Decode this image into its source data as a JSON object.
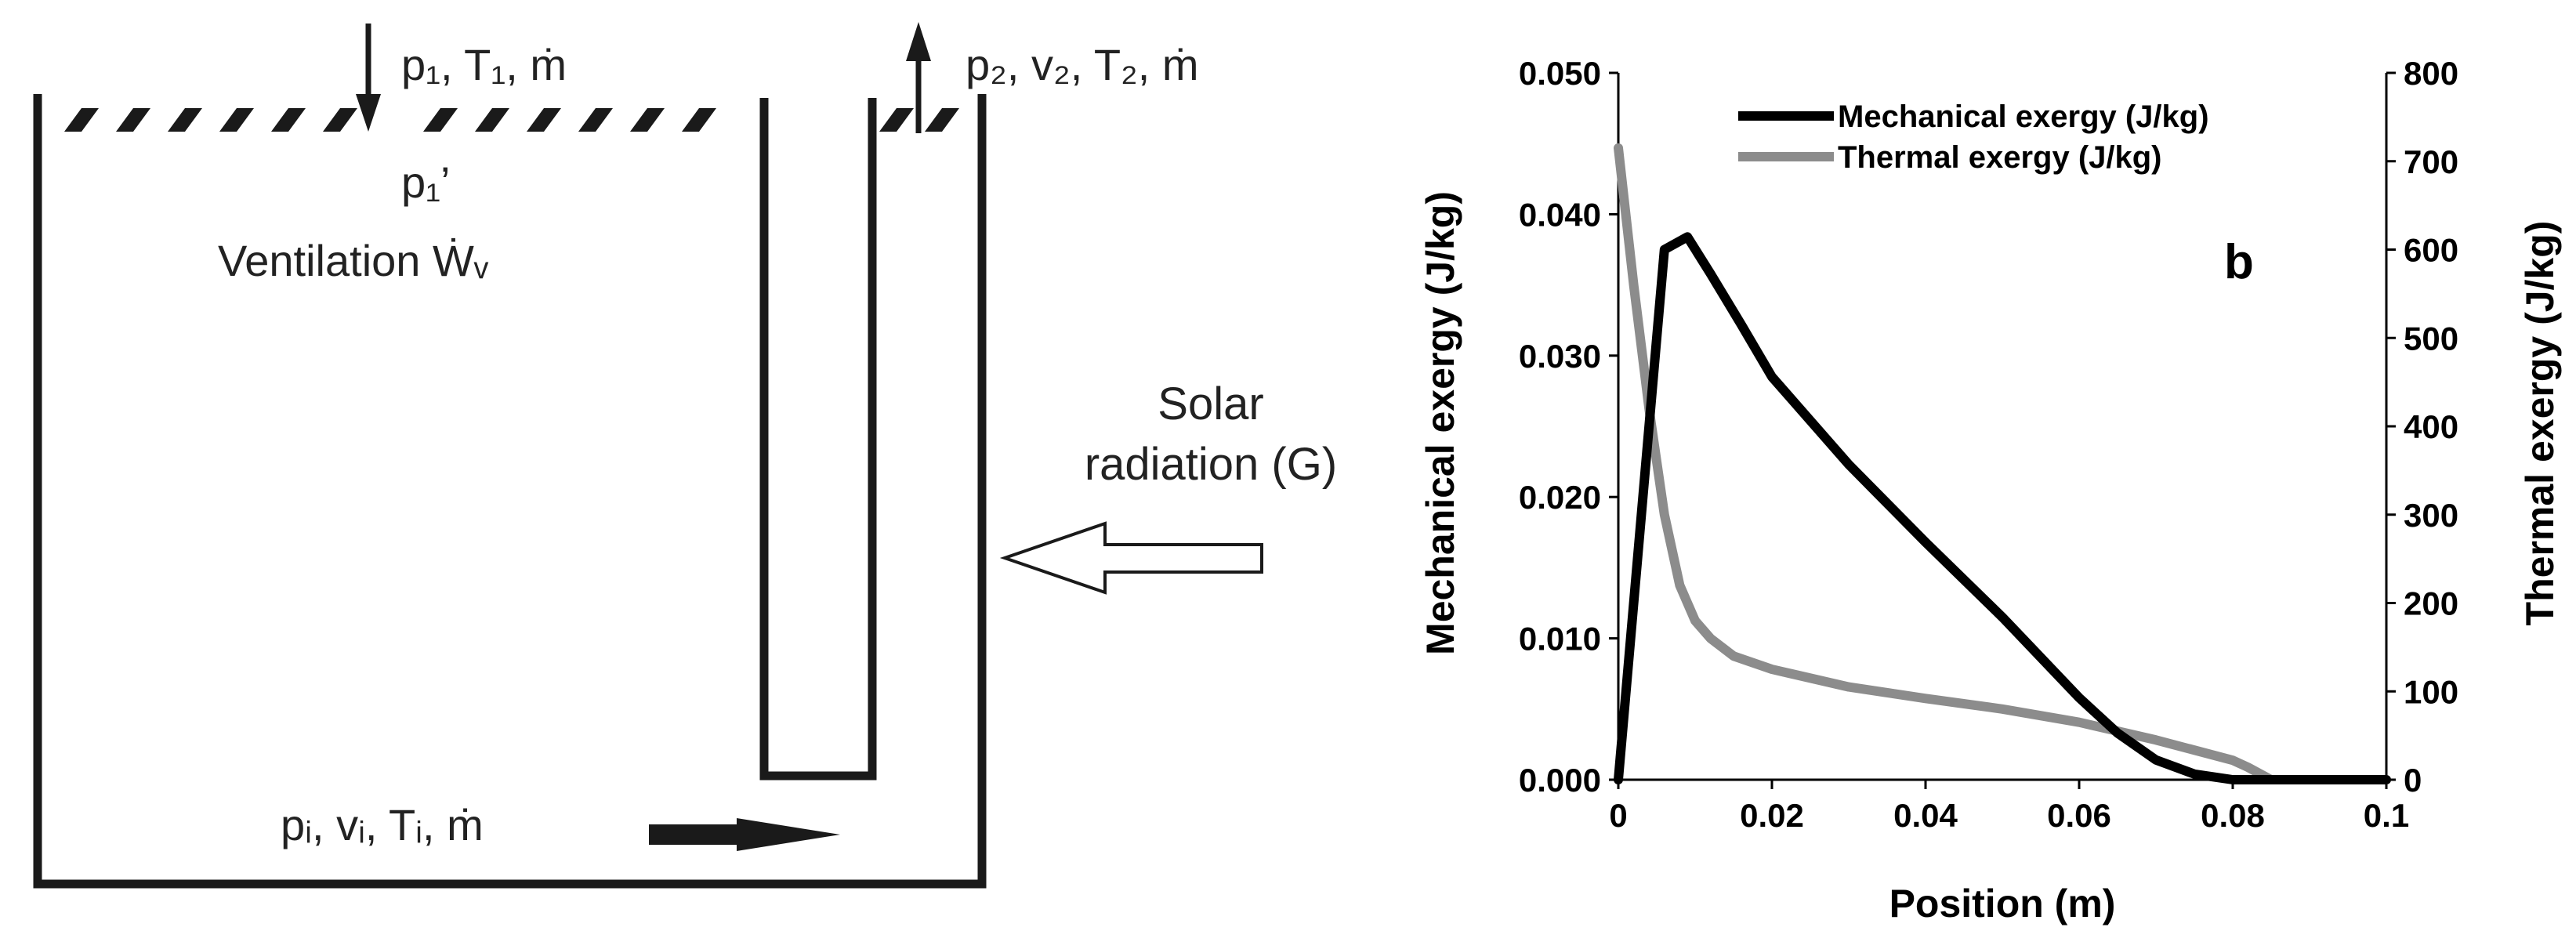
{
  "diagram": {
    "inlet_top_label": "p₁, T₁, ṁ",
    "outlet_top_label": "p₂, v₂, T₂, ṁ",
    "p1_prime_label": "p₁’",
    "ventilation_label": "Ventilation Ẇᵥ",
    "solar_line1": "Solar",
    "solar_line2": "radiation (G)",
    "bottom_flow_label": "pᵢ, vᵢ, Tᵢ, ṁ"
  },
  "chart_data": {
    "type": "line",
    "panel_label": "b",
    "xlabel": "Position (m)",
    "ylabel_left": "Mechanical exergy (J/kg)",
    "ylabel_right": "Thermal exergy (J/kg)",
    "xlim": [
      0,
      0.1
    ],
    "ylim_left": [
      0,
      0.05
    ],
    "ylim_right": [
      0,
      800
    ],
    "x_ticks": [
      "0",
      "0.02",
      "0.04",
      "0.06",
      "0.08",
      "0.1"
    ],
    "x_tick_values": [
      0,
      0.02,
      0.04,
      0.06,
      0.08,
      0.1
    ],
    "y_left_ticks": [
      "0.000",
      "0.010",
      "0.020",
      "0.030",
      "0.040",
      "0.050"
    ],
    "y_left_tick_values": [
      0,
      0.01,
      0.02,
      0.03,
      0.04,
      0.05
    ],
    "y_right_ticks": [
      "0",
      "100",
      "200",
      "300",
      "400",
      "500",
      "600",
      "700",
      "800"
    ],
    "y_right_tick_values": [
      0,
      100,
      200,
      300,
      400,
      500,
      600,
      700,
      800
    ],
    "legend_position": "top-left",
    "series": [
      {
        "name": "Mechanical exergy (J/kg)",
        "axis": "left",
        "color": "#000000",
        "x": [
          0,
          0.006,
          0.009,
          0.012,
          0.016,
          0.02,
          0.03,
          0.04,
          0.05,
          0.06,
          0.065,
          0.07,
          0.075,
          0.08,
          0.085,
          0.1
        ],
        "y": [
          0,
          0.0375,
          0.0384,
          0.0358,
          0.0322,
          0.0285,
          0.0223,
          0.0168,
          0.0115,
          0.0058,
          0.0033,
          0.0014,
          0.0004,
          0.0,
          0.0,
          0.0
        ]
      },
      {
        "name": "Thermal exergy (J/kg)",
        "axis": "right",
        "color": "#8c8c8c",
        "x": [
          0,
          0.002,
          0.004,
          0.006,
          0.008,
          0.01,
          0.012,
          0.015,
          0.02,
          0.03,
          0.04,
          0.05,
          0.06,
          0.07,
          0.08,
          0.082,
          0.085,
          0.1
        ],
        "y": [
          715,
          560,
          420,
          300,
          220,
          180,
          160,
          140,
          125,
          105,
          92,
          80,
          65,
          45,
          22,
          14,
          0,
          0
        ]
      }
    ]
  }
}
